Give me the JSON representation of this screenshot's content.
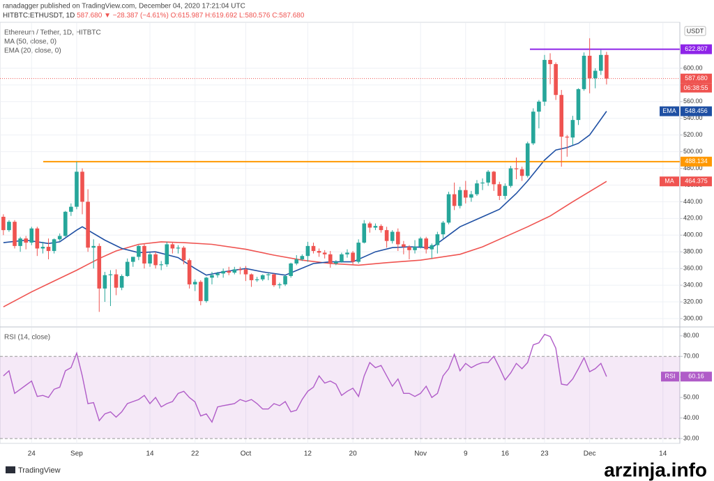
{
  "header": {
    "publisher": "ranadagger published on TradingView.com, December 04, 2020 17:21:04 UTC",
    "symbol": "HITBTC:ETHUSDT, 1D",
    "last": "587.680",
    "change": "▼ −28.387 (−4.61%)",
    "ohlc": "O:615.987 H:619.692 L:580.576 C:587.680"
  },
  "chart_data": [
    {
      "type": "candlestick",
      "title": "Ethereum / Tether, 1D, HITBTC",
      "currency": "USDT",
      "countdown": "06:38:55",
      "last_label": "587.680",
      "up_color": "#26a69a",
      "down_color": "#ef5350",
      "open": [
        422,
        406,
        416,
        387,
        396,
        391,
        408,
        384,
        386,
        381,
        395,
        399,
        428,
        434,
        476,
        440,
        385,
        387,
        336,
        352,
        353,
        337,
        351,
        368,
        374,
        387,
        366,
        377,
        364,
        365,
        389,
        384,
        385,
        370,
        341,
        344,
        321,
        349,
        352,
        354,
        357,
        355,
        359,
        359,
        353,
        346,
        347,
        352,
        353,
        340,
        341,
        351,
        366,
        371,
        375,
        387,
        381,
        379,
        377,
        366,
        368,
        377,
        379,
        368,
        391,
        414,
        409,
        411,
        406,
        393,
        404,
        389,
        386,
        382,
        386,
        396,
        383,
        388,
        401,
        415,
        449,
        435,
        454,
        445,
        449,
        462,
        463,
        476,
        461,
        447,
        459,
        480,
        479,
        471,
        510,
        548,
        560,
        610,
        605,
        568,
        518,
        517,
        538,
        575,
        615,
        588,
        597,
        615.987
      ],
      "high": [
        425,
        418,
        418,
        398,
        399,
        410,
        410,
        392,
        396,
        396,
        402,
        429,
        438,
        488,
        480,
        455,
        395,
        390,
        356,
        358,
        359,
        353,
        372,
        374,
        388,
        390,
        379,
        380,
        369,
        392,
        391,
        388,
        387,
        372,
        347,
        346,
        350,
        356,
        356,
        360,
        362,
        362,
        362,
        363,
        354,
        350,
        353,
        355,
        354,
        343,
        352,
        367,
        376,
        377,
        392,
        391,
        384,
        382,
        381,
        370,
        379,
        383,
        381,
        395,
        418,
        416,
        414,
        413,
        410,
        406,
        408,
        393,
        388,
        394,
        398,
        398,
        390,
        404,
        417,
        452,
        463,
        458,
        465,
        453,
        466,
        468,
        478,
        477,
        464,
        462,
        483,
        493,
        482,
        512,
        552,
        562,
        616,
        618,
        607,
        574,
        520,
        543,
        576,
        619,
        636,
        600,
        622,
        619.692
      ],
      "low": [
        400,
        404,
        384,
        380,
        383,
        388,
        375,
        378,
        371,
        378,
        393,
        398,
        423,
        431,
        425,
        380,
        360,
        308,
        320,
        315,
        328,
        334,
        350,
        362,
        370,
        360,
        362,
        360,
        358,
        362,
        378,
        378,
        365,
        336,
        333,
        316,
        319,
        341,
        349,
        349,
        352,
        353,
        353,
        345,
        338,
        344,
        345,
        346,
        338,
        336,
        339,
        349,
        364,
        369,
        368,
        378,
        374,
        372,
        361,
        364,
        367,
        373,
        364,
        366,
        390,
        403,
        406,
        403,
        385,
        390,
        381,
        377,
        371,
        378,
        384,
        378,
        372,
        378,
        396,
        413,
        430,
        432,
        438,
        440,
        447,
        454,
        459,
        453,
        442,
        443,
        457,
        467,
        465,
        469,
        508,
        528,
        555,
        581,
        562,
        482,
        494,
        508,
        532,
        573,
        570,
        576,
        592,
        580.576
      ],
      "close": [
        406,
        416,
        387,
        396,
        391,
        408,
        384,
        386,
        381,
        395,
        399,
        428,
        434,
        476,
        440,
        385,
        387,
        336,
        352,
        353,
        337,
        351,
        368,
        374,
        387,
        366,
        377,
        364,
        365,
        389,
        384,
        385,
        370,
        341,
        344,
        321,
        349,
        352,
        354,
        357,
        355,
        359,
        358,
        353,
        346,
        347,
        352,
        353,
        340,
        341,
        351,
        366,
        371,
        375,
        387,
        381,
        379,
        377,
        366,
        368,
        377,
        379,
        368,
        391,
        414,
        409,
        411,
        406,
        393,
        404,
        389,
        386,
        382,
        386,
        396,
        383,
        388,
        401,
        415,
        449,
        435,
        454,
        445,
        449,
        462,
        463,
        476,
        461,
        447,
        459,
        480,
        479,
        471,
        510,
        548,
        560,
        610,
        605,
        568,
        518,
        517,
        538,
        575,
        615,
        588,
        597,
        616,
        587.68
      ],
      "series": [
        {
          "name": "MA (50, close, 0)",
          "badge": "MA",
          "color": "#ef5350",
          "x": [
            0,
            5,
            9,
            13,
            17,
            20,
            24,
            28,
            32,
            37,
            43,
            48,
            53,
            58,
            63,
            68,
            74,
            81,
            85,
            89,
            93,
            97,
            101,
            107
          ],
          "values": [
            314,
            332,
            345,
            358,
            372,
            381,
            389,
            392,
            391,
            389,
            383,
            376,
            370,
            366,
            364,
            367,
            370,
            377,
            386,
            398,
            410,
            423,
            440,
            464.375
          ]
        },
        {
          "name": "EMA (20, close, 0)",
          "badge": "EMA",
          "color": "#1e4fa3",
          "x": [
            0,
            4,
            8,
            10,
            13,
            14,
            18,
            21,
            24,
            27,
            31,
            34,
            36,
            39,
            43,
            46,
            50,
            55,
            58,
            62,
            66,
            69,
            72,
            76,
            79,
            81,
            85,
            88,
            91,
            93,
            96,
            98,
            100,
            102,
            104,
            107
          ],
          "values": [
            391,
            394,
            390,
            392,
            406,
            410,
            394,
            384,
            379,
            380,
            373,
            360,
            352,
            356,
            360,
            356,
            352,
            366,
            368,
            368,
            380,
            385,
            386,
            385,
            400,
            410,
            422,
            431,
            450,
            465,
            490,
            502,
            505,
            510,
            520,
            548.456
          ]
        }
      ],
      "annotations": [
        {
          "value": 622.807,
          "color": "#8e24e8"
        },
        {
          "value": 488.134,
          "color": "#ff9800"
        }
      ],
      "xlim": [
        -0.6,
        120
      ],
      "xticks": [
        {
          "value": 5,
          "label": "24"
        },
        {
          "value": 13,
          "label": "Sep"
        },
        {
          "value": 26,
          "label": "14"
        },
        {
          "value": 34,
          "label": "22"
        },
        {
          "value": 43,
          "label": "Oct"
        },
        {
          "value": 54,
          "label": "12"
        },
        {
          "value": 62,
          "label": "20"
        },
        {
          "value": 74,
          "label": "Nov"
        },
        {
          "value": 82,
          "label": "9"
        },
        {
          "value": 89,
          "label": "16"
        },
        {
          "value": 96,
          "label": "23"
        },
        {
          "value": 104,
          "label": "Dec"
        },
        {
          "value": 117,
          "label": "14"
        }
      ],
      "ylim": [
        293.3,
        648.4
      ],
      "yticks": [
        {
          "value": 300,
          "label": "300.00"
        },
        {
          "value": 320,
          "label": "320.00"
        },
        {
          "value": 340,
          "label": "340.00"
        },
        {
          "value": 360,
          "label": "360.00"
        },
        {
          "value": 380,
          "label": "380.00"
        },
        {
          "value": 400,
          "label": "400.00"
        },
        {
          "value": 420,
          "label": "420.00"
        },
        {
          "value": 440,
          "label": "440.00"
        },
        {
          "value": 460,
          "label": "460.00"
        },
        {
          "value": 480,
          "label": "480.00"
        },
        {
          "value": 500,
          "label": "500.00"
        },
        {
          "value": 520,
          "label": "520.00"
        },
        {
          "value": 540,
          "label": "540.00"
        },
        {
          "value": 560,
          "label": "560.00"
        },
        {
          "value": 580,
          "label": "580.00"
        },
        {
          "value": 600,
          "label": "600.00"
        }
      ]
    },
    {
      "type": "line",
      "title": "RSI (14, close)",
      "band": [
        30,
        70
      ],
      "band_color": "#9c27b0",
      "series": [
        {
          "badge": "RSI",
          "color": "#b05cc8",
          "values": [
            60.5,
            63,
            52,
            54,
            56,
            58,
            50.5,
            51,
            50,
            54,
            55,
            63,
            64.5,
            71.6,
            60.5,
            47,
            47.5,
            38.7,
            42,
            43,
            40.4,
            43,
            47,
            48,
            49,
            51,
            47,
            50,
            45.4,
            47,
            48,
            52,
            53,
            50,
            47.8,
            41,
            42,
            38,
            45.4,
            46,
            46.5,
            47,
            49,
            48,
            49,
            47,
            44.4,
            44.4,
            47,
            46,
            48,
            43,
            43.8,
            49,
            53,
            55,
            60.5,
            57,
            58,
            56.5,
            51,
            53,
            54.5,
            50.5,
            60.5,
            67,
            64.5,
            65.6,
            60.5,
            55.5,
            59,
            52,
            52,
            50.5,
            52,
            55.5,
            50,
            52,
            60.5,
            64,
            71,
            63,
            66.6,
            64.5,
            66,
            67,
            67,
            70,
            64.5,
            58.5,
            62,
            66.6,
            64,
            67,
            75.6,
            76.6,
            80.7,
            79.7,
            74,
            56.5,
            56,
            59,
            64,
            69.3,
            62.5,
            64,
            66.6,
            60.16
          ]
        }
      ],
      "ylim": [
        27.65,
        82.3
      ],
      "yticks": [
        {
          "value": 30,
          "label": "30.00"
        },
        {
          "value": 40,
          "label": "40.00"
        },
        {
          "value": 50,
          "label": "50.00"
        },
        {
          "value": 60,
          "label": "60.00"
        },
        {
          "value": 70,
          "label": "70.00"
        },
        {
          "value": 80,
          "label": "80.00"
        }
      ]
    }
  ],
  "footer": {
    "brand": "TradingView",
    "watermark": "arzinja.info"
  }
}
